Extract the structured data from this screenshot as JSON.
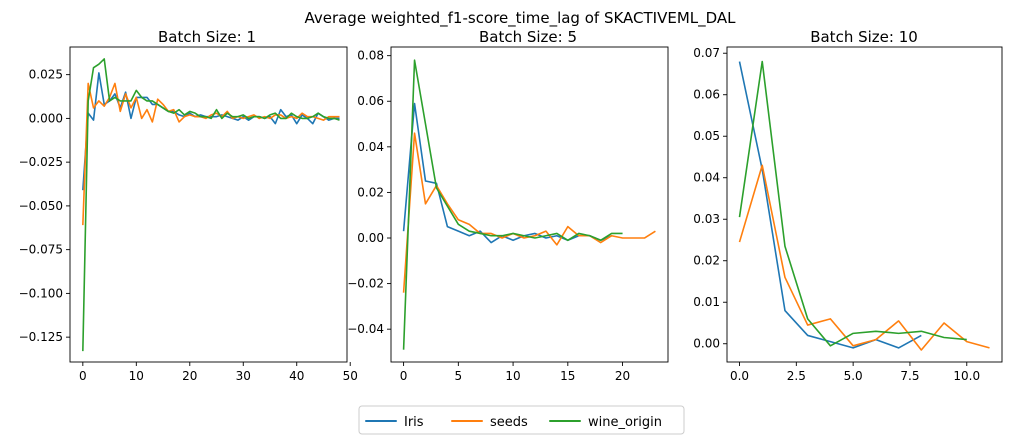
{
  "figure_title": "Average weighted_f1-score_time_lag of SKACTIVEML_DAL",
  "legend": {
    "placement": "bottom-center",
    "entries": [
      {
        "label": "Iris",
        "color": "#1f77b4"
      },
      {
        "label": "seeds",
        "color": "#ff7f0e"
      },
      {
        "label": "wine_origin",
        "color": "#2ca02c"
      }
    ]
  },
  "chart_data": [
    {
      "type": "line",
      "title": "Batch Size: 1",
      "xlabel": "",
      "ylabel": "",
      "xlim": [
        -2.4,
        49.4
      ],
      "ylim": [
        -0.1392,
        0.0408
      ],
      "xticks": [
        0,
        10,
        20,
        30,
        40,
        50
      ],
      "xtick_labels": [
        "0",
        "10",
        "20",
        "30",
        "40",
        "50"
      ],
      "yticks": [
        -0.125,
        -0.1,
        -0.075,
        -0.05,
        -0.025,
        0.0,
        0.025
      ],
      "ytick_labels": [
        "−0.125",
        "−0.100",
        "−0.075",
        "−0.050",
        "−0.025",
        "0.000",
        "0.025"
      ],
      "grid": false,
      "series": [
        {
          "name": "Iris",
          "color": "#1f77b4",
          "x": [
            0,
            1,
            2,
            3,
            4,
            5,
            6,
            7,
            8,
            9,
            10,
            11,
            12,
            13,
            14,
            15,
            16,
            17,
            18,
            19,
            20,
            21,
            22,
            23,
            24,
            25,
            26,
            27,
            28,
            29,
            30,
            31,
            32,
            33,
            34,
            35,
            36,
            37,
            38,
            39,
            40,
            41,
            42,
            43,
            44,
            45,
            46,
            47,
            48
          ],
          "y": [
            -0.041,
            0.003,
            -0.001,
            0.026,
            0.008,
            0.01,
            0.014,
            0.006,
            0.015,
            0.0,
            0.012,
            0.012,
            0.012,
            0.008,
            0.008,
            0.006,
            0.004,
            0.004,
            0.002,
            0.001,
            0.003,
            0.001,
            0.002,
            0.001,
            0.001,
            0.001,
            0.002,
            0.001,
            0.0,
            -0.001,
            0.001,
            -0.001,
            0.001,
            0.001,
            0.0,
            0.001,
            -0.003,
            0.005,
            0.001,
            0.002,
            -0.003,
            0.002,
            0.0,
            -0.003,
            0.003,
            0.001,
            -0.001,
            0.0,
            0.0
          ]
        },
        {
          "name": "seeds",
          "color": "#ff7f0e",
          "x": [
            0,
            1,
            2,
            3,
            4,
            5,
            6,
            7,
            8,
            9,
            10,
            11,
            12,
            13,
            14,
            15,
            16,
            17,
            18,
            19,
            20,
            21,
            22,
            23,
            24,
            25,
            26,
            27,
            28,
            29,
            30,
            31,
            32,
            33,
            34,
            35,
            36,
            37,
            38,
            39,
            40,
            41,
            42,
            43,
            44,
            45,
            46,
            47,
            48
          ],
          "y": [
            -0.061,
            0.02,
            0.006,
            0.01,
            0.007,
            0.012,
            0.02,
            0.004,
            0.014,
            0.006,
            0.012,
            0.0,
            0.005,
            -0.002,
            0.011,
            0.008,
            0.004,
            0.005,
            -0.002,
            0.001,
            0.002,
            0.001,
            0.001,
            0.0,
            0.002,
            0.003,
            0.001,
            0.004,
            0.0,
            0.001,
            0.0,
            0.001,
            0.002,
            0.0,
            0.001,
            0.0,
            0.002,
            0.002,
            0.0,
            0.001,
            0.0,
            0.003,
            0.001,
            0.001,
            0.0,
            -0.001,
            0.001,
            0.001,
            0.001
          ]
        },
        {
          "name": "wine_origin",
          "color": "#2ca02c",
          "x": [
            0,
            1,
            2,
            3,
            4,
            5,
            6,
            7,
            8,
            9,
            10,
            11,
            12,
            13,
            14,
            15,
            16,
            17,
            18,
            19,
            20,
            21,
            22,
            23,
            24,
            25,
            26,
            27,
            28,
            29,
            30,
            31,
            32,
            33,
            34,
            35,
            36,
            37,
            38,
            39,
            40,
            41,
            42,
            43,
            44,
            45,
            46,
            47,
            48
          ],
          "y": [
            -0.133,
            0.01,
            0.029,
            0.031,
            0.034,
            0.01,
            0.012,
            0.01,
            0.01,
            0.01,
            0.016,
            0.012,
            0.01,
            0.01,
            0.008,
            0.006,
            0.004,
            0.003,
            0.005,
            0.002,
            0.004,
            0.003,
            0.001,
            0.001,
            0.0,
            0.005,
            0.0,
            0.003,
            0.001,
            0.001,
            0.002,
            0.0,
            0.001,
            0.001,
            0.0,
            0.002,
            0.003,
            0.0,
            0.0,
            0.003,
            0.001,
            0.0,
            0.0,
            0.001,
            0.003,
            0.001,
            0.0,
            0.0,
            -0.001
          ]
        }
      ]
    },
    {
      "type": "line",
      "title": "Batch Size: 5",
      "xlabel": "",
      "ylabel": "",
      "xlim": [
        -1.15,
        24.15
      ],
      "ylim": [
        -0.0544,
        0.0838
      ],
      "xticks": [
        0,
        5,
        10,
        15,
        20
      ],
      "xtick_labels": [
        "0",
        "5",
        "10",
        "15",
        "20"
      ],
      "yticks": [
        -0.04,
        -0.02,
        0.0,
        0.02,
        0.04,
        0.06,
        0.08
      ],
      "ytick_labels": [
        "−0.04",
        "−0.02",
        "0.00",
        "0.02",
        "0.04",
        "0.06",
        "0.08"
      ],
      "grid": false,
      "series": [
        {
          "name": "Iris",
          "color": "#1f77b4",
          "x": [
            0,
            1,
            2,
            3,
            4,
            5,
            6,
            7,
            8,
            9,
            10,
            11,
            12,
            13,
            14,
            15,
            16,
            17,
            18,
            19
          ],
          "y": [
            0.003,
            0.059,
            0.025,
            0.024,
            0.005,
            0.003,
            0.001,
            0.003,
            -0.002,
            0.001,
            -0.001,
            0.001,
            0.002,
            0.0,
            0.001,
            -0.001,
            0.001,
            0.001,
            -0.001,
            0.001
          ]
        },
        {
          "name": "seeds",
          "color": "#ff7f0e",
          "x": [
            0,
            1,
            2,
            3,
            4,
            5,
            6,
            7,
            8,
            9,
            10,
            11,
            12,
            13,
            14,
            15,
            16,
            17,
            18,
            19,
            20,
            21,
            22,
            23
          ],
          "y": [
            -0.024,
            0.046,
            0.015,
            0.023,
            0.015,
            0.008,
            0.006,
            0.002,
            0.002,
            0.0,
            0.002,
            0.0,
            0.001,
            0.003,
            -0.003,
            0.005,
            0.001,
            0.001,
            -0.002,
            0.001,
            0.0,
            0.0,
            0.0,
            0.003
          ]
        },
        {
          "name": "wine_origin",
          "color": "#2ca02c",
          "x": [
            0,
            1,
            2,
            3,
            4,
            5,
            6,
            7,
            8,
            9,
            10,
            11,
            12,
            13,
            14,
            15,
            16,
            17,
            18,
            19,
            20
          ],
          "y": [
            -0.049,
            0.078,
            0.05,
            0.022,
            0.014,
            0.006,
            0.003,
            0.002,
            0.001,
            0.001,
            0.002,
            0.001,
            0.0,
            0.001,
            0.002,
            -0.001,
            0.002,
            0.001,
            -0.001,
            0.002,
            0.002
          ]
        }
      ]
    },
    {
      "type": "line",
      "title": "Batch Size: 10",
      "xlabel": "",
      "ylabel": "",
      "xlim": [
        -0.55,
        11.55
      ],
      "ylim": [
        -0.0044,
        0.0715
      ],
      "xticks": [
        0,
        2.5,
        5,
        7.5,
        10
      ],
      "xtick_labels": [
        "0.0",
        "2.5",
        "5.0",
        "7.5",
        "10.0"
      ],
      "yticks": [
        0.0,
        0.01,
        0.02,
        0.03,
        0.04,
        0.05,
        0.06,
        0.07
      ],
      "ytick_labels": [
        "0.00",
        "0.01",
        "0.02",
        "0.03",
        "0.04",
        "0.05",
        "0.06",
        "0.07"
      ],
      "grid": false,
      "series": [
        {
          "name": "Iris",
          "color": "#1f77b4",
          "x": [
            0,
            1,
            2,
            3,
            4,
            5,
            6,
            7,
            8
          ],
          "y": [
            0.068,
            0.042,
            0.008,
            0.002,
            0.0005,
            -0.001,
            0.001,
            -0.001,
            0.002
          ]
        },
        {
          "name": "seeds",
          "color": "#ff7f0e",
          "x": [
            0,
            1,
            2,
            3,
            4,
            5,
            6,
            7,
            8,
            9,
            10,
            11
          ],
          "y": [
            0.0245,
            0.043,
            0.016,
            0.0045,
            0.006,
            -0.0005,
            0.001,
            0.0055,
            -0.0015,
            0.005,
            0.0005,
            -0.001
          ]
        },
        {
          "name": "wine_origin",
          "color": "#2ca02c",
          "x": [
            0,
            1,
            2,
            3,
            4,
            5,
            6,
            7,
            8,
            9,
            10
          ],
          "y": [
            0.0305,
            0.068,
            0.0235,
            0.006,
            -0.0005,
            0.0025,
            0.003,
            0.0025,
            0.003,
            0.0015,
            0.001
          ]
        }
      ]
    }
  ]
}
